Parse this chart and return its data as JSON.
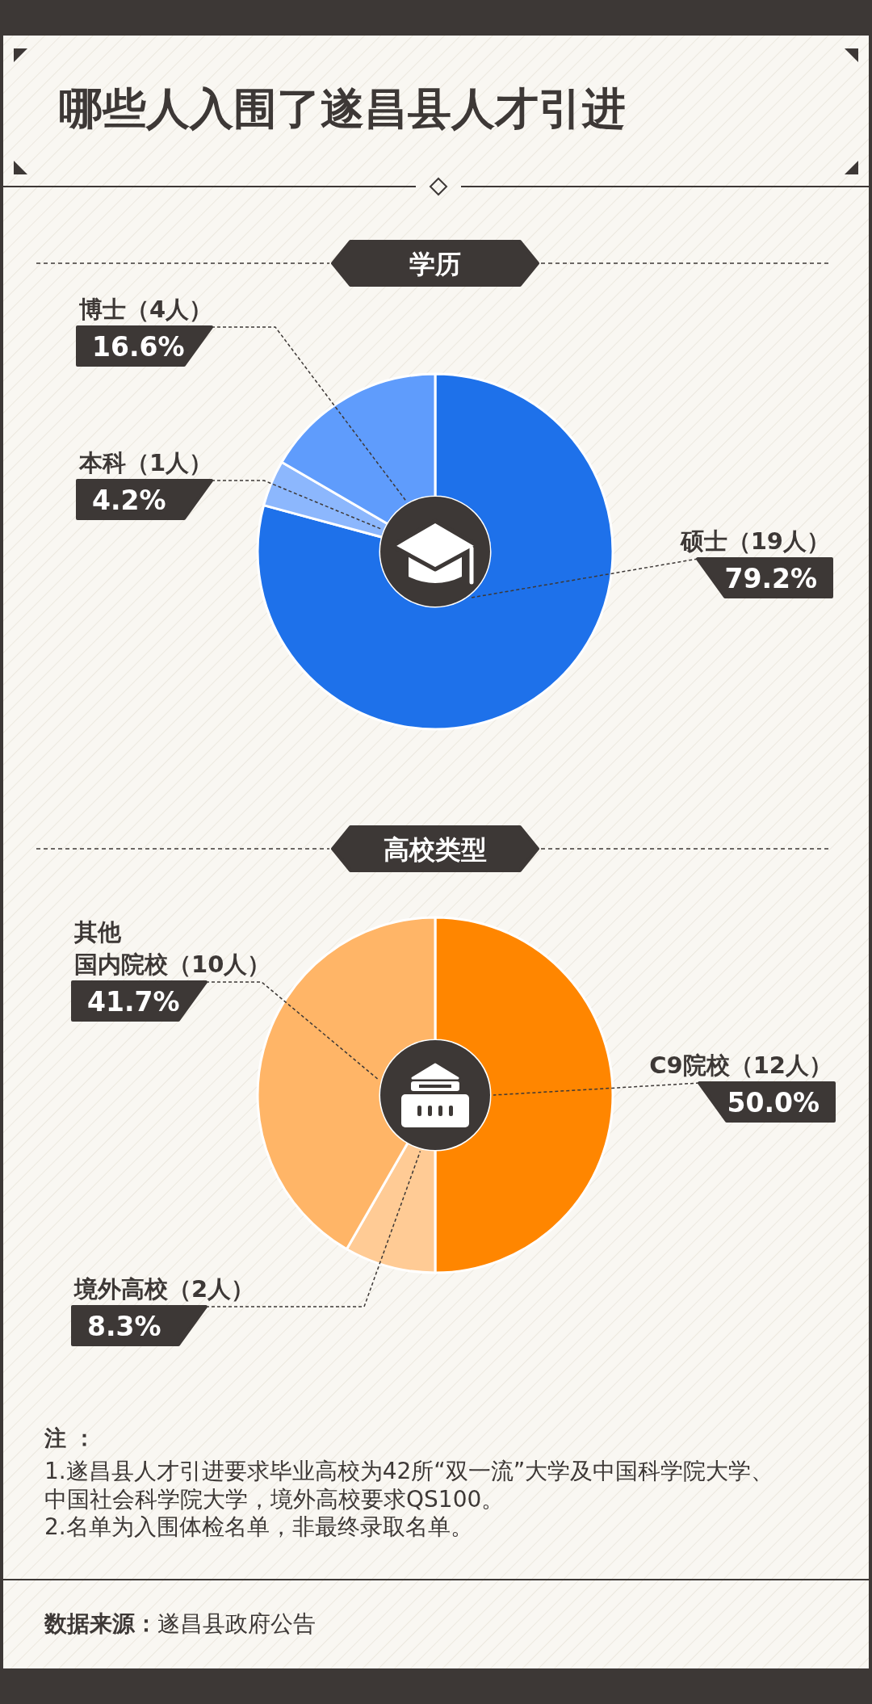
{
  "chart_data": [
    {
      "type": "other",
      "title": "哪些人入围了遂昌县人才引进"
    },
    {
      "type": "donut",
      "title": "学历",
      "categories": [
        "硕士（19人）",
        "本科（1人）",
        "博士（4人）"
      ],
      "values": [
        79.2,
        4.2,
        16.6
      ],
      "colors": [
        "#1e71ea",
        "#8cb7fd",
        "#5f9cfc"
      ],
      "value_labels": [
        "79.2%",
        "4.2%",
        "16.6%"
      ]
    },
    {
      "type": "donut",
      "title": "高校类型",
      "categories": [
        "C9院校（12人）",
        "境外高校（2人）",
        "其他国内院校（10人）"
      ],
      "values": [
        50.0,
        8.3,
        41.7
      ],
      "colors": [
        "#ff8600",
        "#ffcb95",
        "#ffb567"
      ],
      "value_labels": [
        "50.0%",
        "8.3%",
        "41.7%"
      ]
    },
    {
      "type": "other",
      "title": "注 ：",
      "annotations": [
        "1.遂昌县人才引进要求毕业高校为42所“双一流”大学及中国科学院大学、中国社会科学院大学，境外高校要求QS100。",
        "2.名单为入围体检名单，非最终录取名单。"
      ]
    },
    {
      "type": "other",
      "annotations": [
        "**数据来源：**遂昌县政府公告"
      ]
    }
  ]
}
